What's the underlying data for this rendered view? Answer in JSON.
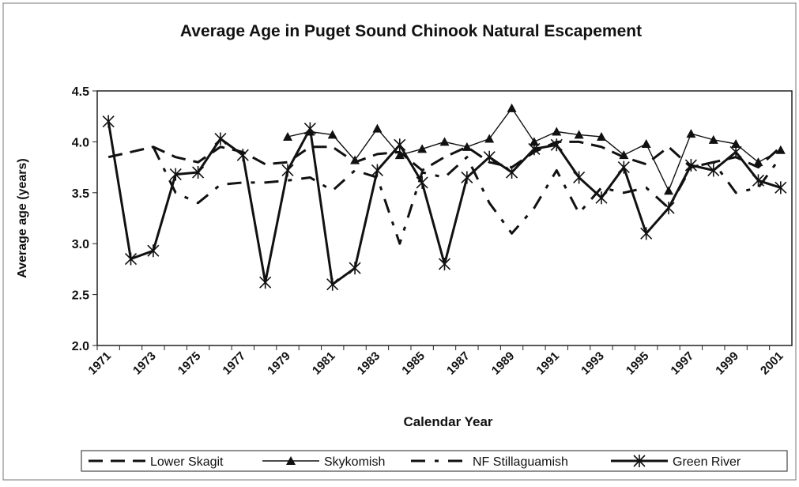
{
  "chart_data": {
    "type": "line",
    "title": "Average Age in Puget Sound Chinook Natural Escapement",
    "x_label": "Calendar Year",
    "y_label": "Average age (years)",
    "categories": [
      "1971",
      null,
      "1973",
      null,
      "1975",
      null,
      "1977",
      null,
      "1979",
      null,
      "1981",
      null,
      "1983",
      null,
      "1985",
      null,
      "1987",
      null,
      "1989",
      null,
      "1991",
      null,
      "1993",
      null,
      "1995",
      null,
      "1997",
      null,
      "1999",
      null,
      "2001"
    ],
    "ylim": [
      2.0,
      4.5
    ],
    "yticks": [
      {
        "value": 2.0,
        "label": "2.0"
      },
      {
        "value": 2.5,
        "label": "2.5"
      },
      {
        "value": 3.0,
        "label": "3.0"
      },
      {
        "value": 3.5,
        "label": "3.5"
      },
      {
        "value": 4.0,
        "label": "4.0"
      },
      {
        "value": 4.5,
        "label": "4.5"
      }
    ],
    "legend": "bottom",
    "series": [
      {
        "name": "Lower Skagit",
        "color": "#111111",
        "style": "dashed",
        "marker": "none",
        "values": [
          3.85,
          3.9,
          3.95,
          3.85,
          3.8,
          3.95,
          3.9,
          3.78,
          3.8,
          3.95,
          3.95,
          3.8,
          3.88,
          3.9,
          3.72,
          3.85,
          3.95,
          3.8,
          3.75,
          3.9,
          4.0,
          4.0,
          3.95,
          3.85,
          3.78,
          3.95,
          3.75,
          3.8,
          3.85,
          3.75,
          3.95
        ]
      },
      {
        "name": "Skykomish",
        "color": "#111111",
        "style": "solid-thin",
        "marker": "triangle",
        "values": [
          null,
          null,
          null,
          null,
          null,
          null,
          null,
          null,
          4.05,
          4.1,
          4.07,
          3.82,
          4.13,
          3.87,
          3.93,
          4.0,
          3.95,
          4.03,
          4.33,
          4.0,
          4.1,
          4.07,
          4.05,
          3.87,
          3.98,
          3.52,
          4.08,
          4.02,
          3.98,
          3.8,
          3.92
        ]
      },
      {
        "name": "NF Stillaguamish",
        "color": "#111111",
        "style": "dashdot",
        "marker": "none",
        "values": [
          null,
          null,
          3.95,
          3.5,
          3.4,
          3.58,
          3.6,
          3.6,
          3.62,
          3.65,
          3.52,
          3.72,
          3.65,
          3.0,
          3.7,
          3.65,
          3.85,
          3.4,
          3.1,
          3.35,
          3.72,
          3.3,
          3.55,
          3.5,
          3.55,
          3.35,
          3.75,
          3.8,
          3.5,
          3.55,
          3.85
        ]
      },
      {
        "name": "Green River",
        "color": "#111111",
        "style": "solid-thick",
        "marker": "star",
        "values": [
          4.2,
          2.85,
          2.93,
          3.68,
          3.7,
          4.03,
          3.87,
          2.62,
          3.72,
          4.13,
          2.6,
          2.76,
          3.72,
          3.97,
          3.6,
          2.8,
          3.65,
          3.85,
          3.7,
          3.93,
          3.97,
          3.65,
          3.45,
          3.75,
          3.1,
          3.35,
          3.77,
          3.72,
          3.9,
          3.62,
          3.55
        ]
      }
    ]
  }
}
